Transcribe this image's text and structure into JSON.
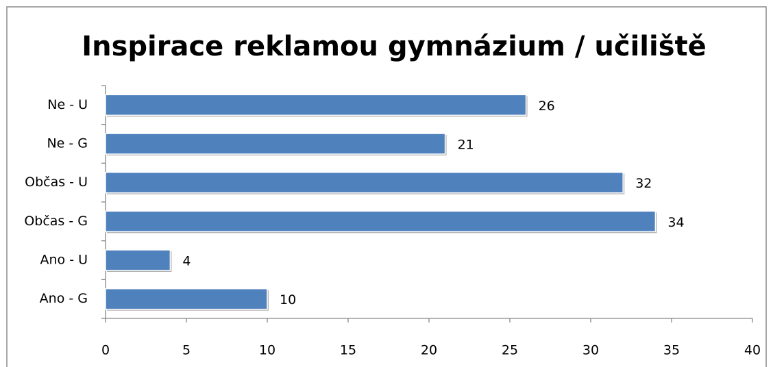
{
  "chart_data": {
    "type": "bar",
    "orientation": "horizontal",
    "title": "Inspirace reklamou gymnázium / učiliště",
    "categories": [
      "Ne - U",
      "Ne - G",
      "Občas - U",
      "Občas - G",
      "Ano - U",
      "Ano - G"
    ],
    "values": [
      26,
      21,
      32,
      34,
      4,
      10
    ],
    "color": "#4f81bd",
    "xlim": [
      0,
      40
    ],
    "xticks": [
      0,
      5,
      10,
      15,
      20,
      25,
      30,
      35,
      40
    ],
    "grid": false
  }
}
